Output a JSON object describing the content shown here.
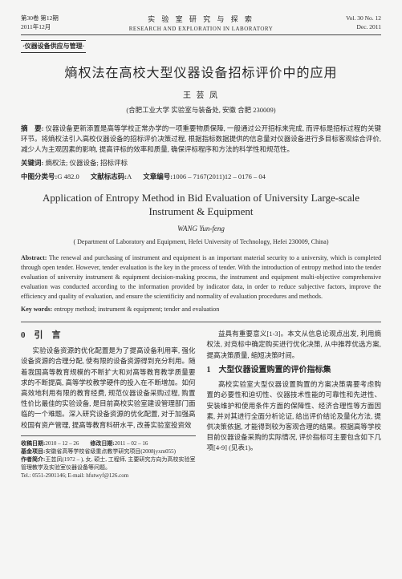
{
  "header": {
    "vol_cn": "第30卷 第12期",
    "date_cn": "2011年12月",
    "journal_cn": "实 验 室 研 究 与 探 索",
    "journal_en": "RESEARCH AND EXPLORATION IN LABORATORY",
    "vol_en": "Vol. 30 No. 12",
    "date_en": "Dec. 2011"
  },
  "section_tag": "·仪器设备供应与管理·",
  "title_cn": "熵权法在高校大型仪器设备招标评价中的应用",
  "author_cn": "王 芸 凤",
  "affil_cn": "(合肥工业大学 实验室与装备处, 安徽 合肥 230009)",
  "abstract_cn_label": "摘　要:",
  "abstract_cn": "仪器设备更新添置是高等学校正常办学的一项重要物质保障, 一般通过公开招标来完成, 而评标是招标过程的关键环节。将熵权法引入高校仪器设备的招标评价决策过程, 根据指标数据提供的信息量对仪器设备进行多目标客观综合评价, 减少人为主观因素的影响, 提高评标的效率和质量, 确保评标程序和方法的科学性和规范性。",
  "kw_cn_label": "关键词:",
  "kw_cn": "熵权法; 仪器设备; 招标评标",
  "cls_label": "中图分类号:",
  "cls_code": "G 482.0",
  "doc_label": "文献标志码:",
  "doc_code": "A",
  "artno_label": "文章编号:",
  "artno": "1006 – 7167(2011)12 – 0176 – 04",
  "title_en": "Application of Entropy Method in Bid Evaluation of University Large-scale Instrument & Equipment",
  "author_en": "WANG Yun-feng",
  "affil_en": "( Department of Laboratory and Equipment, Hefei University of Technology, Hefei 230009, China)",
  "abstract_en_label": "Abstract:",
  "abstract_en": "The renewal and purchasing of instrument and equipment is an important material security to a university, which is completed through open tender. However, tender evaluation is the key in the process of tender. With the introduction of entropy method into the tender evaluation of university instrument & equipment decision-making process, the instrument and equipment multi-objective comprehensive evaluation was conducted according to the information provided by indicator data, in order to reduce subjective factors, improve the efficiency and quality of evaluation, and ensure the scientificity and normality of evaluation procedures and methods.",
  "kw_en_label": "Key words:",
  "kw_en": "entropy method; instrument & equipment; tender and evaluation",
  "intro_heading": "0　引　言",
  "intro_p1": "实验设备资源的优化配置是为了提高设备利用率, 强化设备资源的合理分配, 使有限的设备资源得到充分利用。随着我国高等教育规模的不断扩大和对高等教育教学质量要求的不断提高, 高等学校教学硬件的投入在不断增加。如何高效地利用有限的教育经费, 规范仪器设备采购过程, 购置性价比最佳的实验设备, 是目前高校实验室建设管理部门面临的一个难题。深入研究设备资源的优化配置, 对于加强高校国有资产管理, 提高等教育科研水平, 改善实验室投资效",
  "col2_p1": "益具有重要意义[1-3]。本文从信息论观点出发, 利用熵权法, 对竞标中确定购买进行优化决策, 从中推荐优选方案, 提高决策质量, 缩短决策时间。",
  "sec1_heading": "1　大型仪器设置购置的评价指标集",
  "sec1_p1": "高校实验室大型仪器设置购置的方案决策需要考虑购置的必要性和迫切性、仪器技术性能的可靠性和先进性、安装维护和使用条件方面的保障性、经济合理性等方面因素, 并对其进行全面分析论证, 给出评价结论及量化方法, 提供决策依据, 才能得到较为客观合理的结果。根据高等学校目前仪器设备采购的实际情况, 评价指标可主要包含如下几项[4-9] (见表1)。",
  "footer": {
    "recv_label": "收稿日期:",
    "recv": "2010 – 12 – 26",
    "rev_label": "修改日期:",
    "rev": "2011 – 02 – 16",
    "fund_label": "基金项目:",
    "fund": "安徽省高等学校省级重点教学研究项目(2008jyxm055)",
    "author_label": "作者简介:",
    "author": "王芸凤(1972 – ), 女, 硕士, 工程师, 主要研究方向为高校实验室管理教学及实验室仪器设备等问题。",
    "tel": "Tel.: 0551-2901146; E-mail: hfutwyf@126.com"
  }
}
